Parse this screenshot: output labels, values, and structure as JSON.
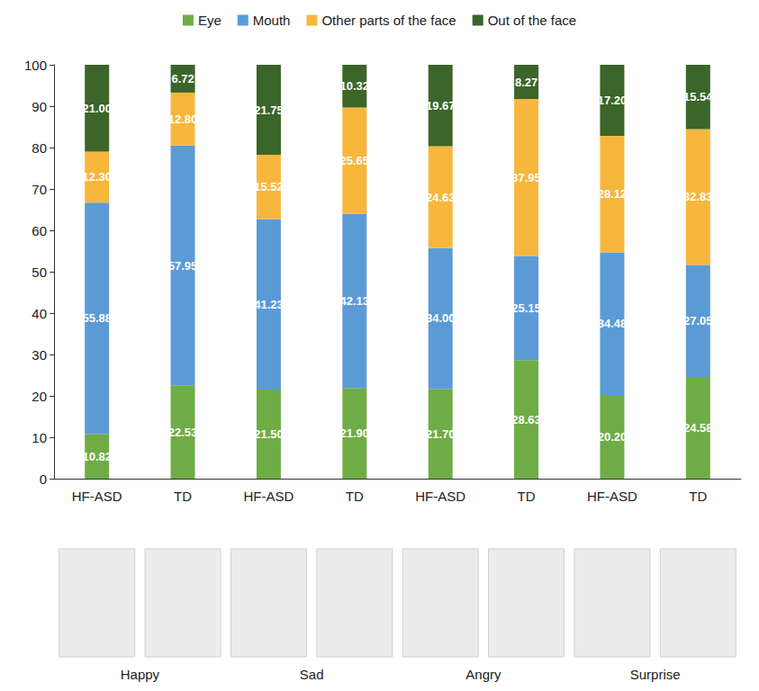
{
  "chart_data": {
    "type": "bar",
    "stacked": true,
    "data_labels": true,
    "legend": "top",
    "grid": false,
    "categories": [
      "HF-ASD",
      "TD",
      "HF-ASD",
      "TD",
      "HF-ASD",
      "TD",
      "HF-ASD",
      "TD"
    ],
    "group_labels": [
      "Happy",
      "Sad",
      "Angry",
      "Surprise"
    ],
    "ylim": [
      0,
      100
    ],
    "yticks": [
      0,
      10,
      20,
      30,
      40,
      50,
      60,
      70,
      80,
      90,
      100
    ],
    "series": [
      {
        "name": "Eye",
        "color": "#6fac46",
        "values": [
          10.82,
          22.53,
          21.5,
          21.9,
          21.7,
          28.63,
          20.2,
          24.58
        ],
        "value_labels": [
          "10.82",
          "22.53",
          "21.50",
          "21.90",
          "21.70",
          "28.63",
          "20.20",
          "24.58"
        ]
      },
      {
        "name": "Mouth",
        "color": "#5b9bd5",
        "values": [
          55.88,
          57.95,
          41.23,
          42.13,
          34.0,
          25.15,
          34.48,
          27.05
        ],
        "value_labels": [
          "55.88",
          "57.95",
          "41.23",
          "42.13",
          "34.00",
          "25.15",
          "34.48",
          "27.05"
        ]
      },
      {
        "name": "Other parts of the face",
        "color": "#f6b73c",
        "values": [
          12.3,
          12.8,
          15.52,
          25.65,
          24.63,
          37.95,
          28.12,
          32.83
        ],
        "value_labels": [
          "12.30",
          "12.80",
          "15.52",
          "25.65",
          "24.63",
          "37.95",
          "28.12",
          "32.83"
        ]
      },
      {
        "name": "Out of the face",
        "color": "#3b6529",
        "values": [
          21.0,
          6.72,
          21.75,
          10.32,
          19.67,
          8.27,
          17.2,
          15.54
        ],
        "value_labels": [
          "21.00",
          "6.72",
          "21.75",
          "10.32",
          "19.67",
          "8.27",
          "17.20",
          "15.54"
        ]
      }
    ]
  }
}
